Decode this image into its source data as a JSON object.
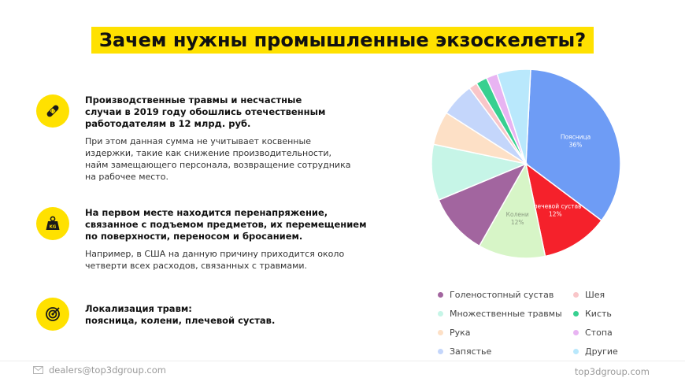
{
  "title": "Зачем нужны промышленные экзоскелеты?",
  "blocks": [
    {
      "icon": "bandage-icon",
      "bold": "Производственные травмы и несчастные\nслучаи в 2019 году обошлись отечественным\nработодателям в 12 млрд. руб.",
      "text": "При этом данная сумма не учитывает косвенные\nиздержки, такие как снижение производительности,\nнайм замещающего персонала, возвращение сотрудника\nна рабочее место."
    },
    {
      "icon": "weight-icon",
      "bold": "На первом месте находится перенапряжение,\nсвязанное с подъемом предметов, их перемещением\nпо поверхности, переносом и бросанием.",
      "text": "Например, в США на данную причину приходится около\nчетверти всех расходов, связанных с травмами."
    },
    {
      "icon": "target-icon",
      "bold": "Локализация травм:\nпоясница, колени, плечевой сустав.",
      "text": ""
    }
  ],
  "chart_data": {
    "type": "pie",
    "slices": [
      {
        "name": "Поясница",
        "value": 36,
        "color": "#6e9cf5",
        "label": "Поясница",
        "pct_label": "36%",
        "label_color": "#ffffff"
      },
      {
        "name": "Плечевой сустав",
        "value": 12,
        "color": "#f5212b",
        "label": "Плечевой сустав",
        "pct_label": "12%",
        "label_color": "#ffffff"
      },
      {
        "name": "Колени",
        "value": 12,
        "color": "#d7f5c7",
        "label": "Колени",
        "pct_label": "12%",
        "label_color": "#8a9a80"
      },
      {
        "name": "Голеностопный сустав",
        "value": 11,
        "color": "#a2659f",
        "label": "",
        "pct_label": "",
        "label_color": ""
      },
      {
        "name": "Множественные травмы",
        "value": 10,
        "color": "#c6f5e7",
        "label": "",
        "pct_label": "",
        "label_color": ""
      },
      {
        "name": "Рука",
        "value": 6,
        "color": "#fde0c6",
        "label": "",
        "pct_label": "",
        "label_color": ""
      },
      {
        "name": "Запястье",
        "value": 6,
        "color": "#c4d6fb",
        "label": "",
        "pct_label": "",
        "label_color": ""
      },
      {
        "name": "Шея",
        "value": 1.5,
        "color": "#f9c6c9",
        "label": "",
        "pct_label": "",
        "label_color": ""
      },
      {
        "name": "Кисть",
        "value": 2,
        "color": "#37d090",
        "label": "",
        "pct_label": "",
        "label_color": ""
      },
      {
        "name": "Стопа",
        "value": 2,
        "color": "#e8b4f2",
        "label": "",
        "pct_label": "",
        "label_color": ""
      },
      {
        "name": "Другие",
        "value": 6,
        "color": "#b9e8fc",
        "label": "",
        "pct_label": "",
        "label_color": ""
      }
    ],
    "legend": [
      {
        "name": "Голеностопный сустав",
        "color": "#a2659f"
      },
      {
        "name": "Множественные травмы",
        "color": "#c6f5e7"
      },
      {
        "name": "Рука",
        "color": "#fde0c6"
      },
      {
        "name": "Запястье",
        "color": "#c4d6fb"
      },
      {
        "name": "Шея",
        "color": "#f9c6c9"
      },
      {
        "name": "Кисть",
        "color": "#37d090"
      },
      {
        "name": "Стопа",
        "color": "#e8b4f2"
      },
      {
        "name": "Другие",
        "color": "#b9e8fc"
      }
    ],
    "legend_placement": "bottom"
  },
  "footer": {
    "email": "dealers@top3dgroup.com",
    "email_icon": "mail-icon",
    "site": "top3dgroup.com"
  }
}
